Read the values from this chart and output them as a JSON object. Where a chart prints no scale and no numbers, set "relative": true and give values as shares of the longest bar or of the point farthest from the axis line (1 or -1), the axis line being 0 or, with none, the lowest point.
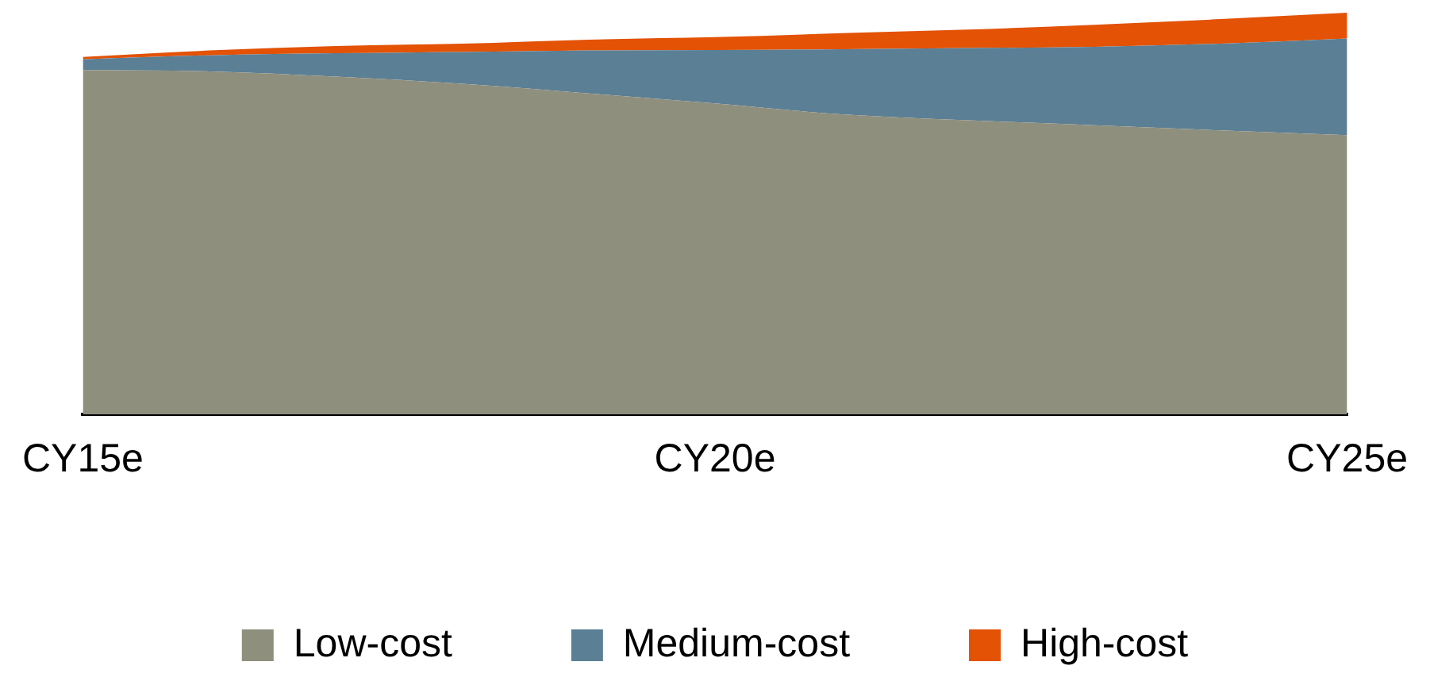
{
  "chart_data": {
    "type": "area",
    "relative": true,
    "stacked": true,
    "grid": false,
    "legend": "bottom",
    "categories": [
      "CY15e",
      null,
      null,
      null,
      null,
      "CY20e",
      null,
      null,
      null,
      null,
      "CY25e"
    ],
    "series": [
      {
        "name": "Low-cost",
        "color": "#8f8f7e",
        "values": [
          0.857,
          0.854,
          0.841,
          0.823,
          0.799,
          0.774,
          0.747,
          0.732,
          0.72,
          0.707,
          0.695
        ]
      },
      {
        "name": "Medium-cost",
        "color": "#5b7f95",
        "values": [
          0.027,
          0.04,
          0.058,
          0.079,
          0.107,
          0.133,
          0.162,
          0.18,
          0.195,
          0.216,
          0.241
        ]
      },
      {
        "name": "High-cost",
        "color": "#e35205",
        "values": [
          0.006,
          0.012,
          0.018,
          0.021,
          0.027,
          0.032,
          0.04,
          0.046,
          0.055,
          0.061,
          0.064
        ]
      }
    ]
  }
}
